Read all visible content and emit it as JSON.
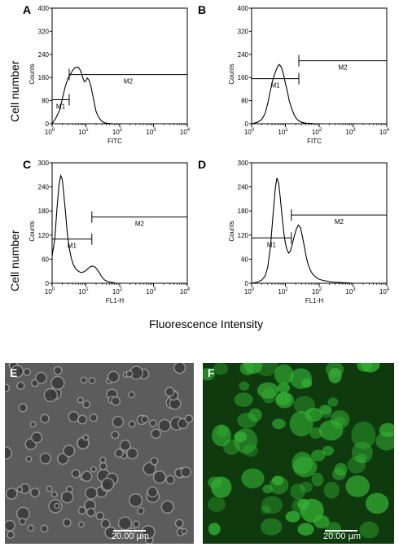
{
  "ylabel_shared": "Cell number",
  "xlabel_shared": "Fluorescence Intensity",
  "chart_data": [
    {
      "panel": "A",
      "type": "line",
      "xlabel": "FITC",
      "ylabel": "Counts",
      "xscale": "log",
      "xlim": [
        1,
        10000
      ],
      "ylim": [
        0,
        400
      ],
      "yticks": [
        0,
        80,
        160,
        240,
        320,
        400
      ],
      "xticks": [
        "10^0",
        "10^1",
        "10^2",
        "10^3",
        "10^4"
      ],
      "markers": [
        {
          "name": "M1",
          "x": [
            1,
            3.2
          ],
          "y": 83
        },
        {
          "name": "M2",
          "x": [
            3.2,
            10000
          ],
          "y": 170
        }
      ],
      "series": [
        {
          "x": [
            1,
            1.3,
            1.7,
            2,
            2.4,
            2.9,
            3.5,
            4.2,
            5,
            6,
            7,
            8,
            9,
            10,
            11,
            12.5,
            14,
            16,
            18,
            20,
            23,
            26,
            30,
            35,
            40,
            50,
            60
          ],
          "y": [
            0,
            20,
            50,
            85,
            125,
            155,
            172,
            188,
            196,
            195,
            183,
            160,
            145,
            148,
            158,
            150,
            130,
            98,
            68,
            42,
            26,
            16,
            8,
            4,
            2,
            1,
            0
          ]
        }
      ]
    },
    {
      "panel": "B",
      "type": "line",
      "xlabel": "FITC",
      "ylabel": "Counts",
      "xscale": "log",
      "xlim": [
        1,
        10000
      ],
      "ylim": [
        0,
        400
      ],
      "yticks": [
        0,
        80,
        160,
        240,
        320,
        400
      ],
      "xticks": [
        "10^0",
        "10^1",
        "10^2",
        "10^3",
        "10^4"
      ],
      "markers": [
        {
          "name": "M1",
          "x": [
            1,
            25
          ],
          "y": 156
        },
        {
          "name": "M2",
          "x": [
            25,
            10000
          ],
          "y": 218
        }
      ],
      "series": [
        {
          "x": [
            1,
            1.5,
            2,
            2.5,
            3,
            3.6,
            4.2,
            5,
            5.8,
            6.5,
            7.2,
            8,
            9,
            10,
            11.5,
            13,
            15,
            18,
            21,
            25,
            30,
            40,
            55,
            80
          ],
          "y": [
            0,
            5,
            15,
            35,
            70,
            115,
            150,
            178,
            196,
            205,
            200,
            188,
            165,
            140,
            110,
            80,
            55,
            32,
            18,
            10,
            5,
            2,
            1,
            0
          ]
        }
      ]
    },
    {
      "panel": "C",
      "type": "line",
      "xlabel": "FL1-H",
      "ylabel": "Counts",
      "xscale": "log",
      "xlim": [
        1,
        10000
      ],
      "ylim": [
        0,
        300
      ],
      "yticks": [
        0,
        60,
        120,
        180,
        240,
        300
      ],
      "xticks": [
        "10^0",
        "10^1",
        "10^2",
        "10^3",
        "10^4"
      ],
      "markers": [
        {
          "name": "M1",
          "x": [
            1,
            15
          ],
          "y": 110
        },
        {
          "name": "M2",
          "x": [
            15,
            10000
          ],
          "y": 165
        }
      ],
      "series": [
        {
          "x": [
            1,
            1.2,
            1.4,
            1.6,
            1.8,
            2,
            2.2,
            2.5,
            2.8,
            3.2,
            3.7,
            4.3,
            5,
            6,
            7,
            8.5,
            10,
            12,
            14,
            16,
            19,
            22,
            26,
            30,
            36,
            45,
            60,
            80
          ],
          "y": [
            68,
            110,
            190,
            245,
            268,
            258,
            225,
            175,
            125,
            88,
            62,
            45,
            36,
            30,
            27,
            28,
            32,
            38,
            42,
            43,
            40,
            33,
            24,
            15,
            8,
            4,
            2,
            0
          ]
        }
      ]
    },
    {
      "panel": "D",
      "type": "line",
      "xlabel": "FL1-H",
      "ylabel": "Counts",
      "xscale": "log",
      "xlim": [
        1,
        10000
      ],
      "ylim": [
        0,
        300
      ],
      "yticks": [
        0,
        60,
        120,
        180,
        240,
        300
      ],
      "xticks": [
        "10^0",
        "10^1",
        "10^2",
        "10^3",
        "10^4"
      ],
      "markers": [
        {
          "name": "M1",
          "x": [
            1,
            15
          ],
          "y": 113
        },
        {
          "name": "M2",
          "x": [
            15,
            10000
          ],
          "y": 170
        }
      ],
      "series": [
        {
          "x": [
            1,
            1.5,
            2,
            2.5,
            3,
            3.6,
            4.2,
            5,
            5.6,
            6.3,
            7,
            8,
            9,
            10,
            11,
            12.5,
            14,
            16,
            18,
            21,
            24,
            28,
            32,
            37,
            42,
            48,
            55,
            65,
            80,
            100,
            130,
            180,
            250,
            400,
            700,
            1000
          ],
          "y": [
            0,
            3,
            8,
            18,
            40,
            90,
            160,
            235,
            262,
            250,
            215,
            165,
            125,
            100,
            85,
            75,
            80,
            98,
            115,
            135,
            145,
            138,
            115,
            88,
            62,
            45,
            32,
            22,
            15,
            10,
            7,
            5,
            3,
            2,
            1,
            0
          ]
        }
      ]
    }
  ],
  "micrographs": [
    {
      "panel": "E",
      "scale_label": "20.00 µm",
      "background": "#5c5c5c",
      "cell_color": "#9a9a9a"
    },
    {
      "panel": "F",
      "scale_label": "20.00 µm",
      "background": "#0e3a0e",
      "cell_color": "#34b034"
    }
  ]
}
